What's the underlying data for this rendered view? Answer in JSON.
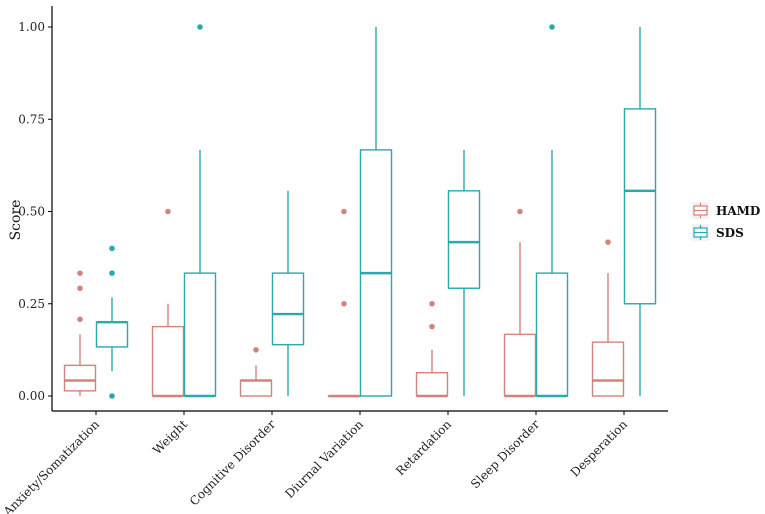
{
  "chart_data": {
    "type": "boxplot",
    "title": "",
    "xlabel": "",
    "ylabel": "Score",
    "ylim": [
      0,
      1.05
    ],
    "yticks": [
      0.0,
      0.25,
      0.5,
      0.75,
      1.0
    ],
    "ytick_labels": [
      "0.00",
      "0.25",
      "0.50",
      "0.75",
      "1.00"
    ],
    "categories": [
      "Anxiety/Somatization",
      "Weight",
      "Cognitive Disorder",
      "Diurnal Variation",
      "Retardation",
      "Sleep Disorder",
      "Desperation"
    ],
    "legend_position": "right",
    "series": [
      {
        "name": "HAMD",
        "color": "#d4837c",
        "boxes": [
          {
            "min": 0.0,
            "q1": 0.014,
            "median": 0.042,
            "q3": 0.083,
            "max": 0.167,
            "outliers": [
              0.208,
              0.292,
              0.333
            ]
          },
          {
            "min": 0.0,
            "q1": 0.0,
            "median": 0.0,
            "q3": 0.188,
            "max": 0.25,
            "outliers": [
              0.5
            ]
          },
          {
            "min": 0.0,
            "q1": 0.0,
            "median": 0.042,
            "q3": 0.042,
            "max": 0.083,
            "outliers": [
              0.125
            ]
          },
          {
            "min": 0.0,
            "q1": 0.0,
            "median": 0.0,
            "q3": 0.0,
            "max": 0.0,
            "outliers": [
              0.25,
              0.5
            ]
          },
          {
            "min": 0.0,
            "q1": 0.0,
            "median": 0.0,
            "q3": 0.063,
            "max": 0.125,
            "outliers": [
              0.188,
              0.25
            ]
          },
          {
            "min": 0.0,
            "q1": 0.0,
            "median": 0.0,
            "q3": 0.167,
            "max": 0.417,
            "outliers": [
              0.5
            ]
          },
          {
            "min": 0.0,
            "q1": 0.0,
            "median": 0.042,
            "q3": 0.146,
            "max": 0.333,
            "outliers": [
              0.417
            ]
          }
        ]
      },
      {
        "name": "SDS",
        "color": "#2aa9ae",
        "boxes": [
          {
            "min": 0.067,
            "q1": 0.133,
            "median": 0.2,
            "q3": 0.2,
            "max": 0.267,
            "outliers": [
              0.0,
              0.333,
              0.4
            ]
          },
          {
            "min": 0.0,
            "q1": 0.0,
            "median": 0.0,
            "q3": 0.333,
            "max": 0.667,
            "outliers": [
              1.0
            ]
          },
          {
            "min": 0.0,
            "q1": 0.139,
            "median": 0.222,
            "q3": 0.333,
            "max": 0.556,
            "outliers": []
          },
          {
            "min": 0.0,
            "q1": 0.0,
            "median": 0.333,
            "q3": 0.667,
            "max": 1.0,
            "outliers": []
          },
          {
            "min": 0.0,
            "q1": 0.292,
            "median": 0.417,
            "q3": 0.556,
            "max": 0.667,
            "outliers": []
          },
          {
            "min": 0.0,
            "q1": 0.0,
            "median": 0.0,
            "q3": 0.333,
            "max": 0.667,
            "outliers": [
              1.0
            ]
          },
          {
            "min": 0.0,
            "q1": 0.25,
            "median": 0.556,
            "q3": 0.778,
            "max": 1.0,
            "outliers": []
          }
        ]
      }
    ]
  }
}
